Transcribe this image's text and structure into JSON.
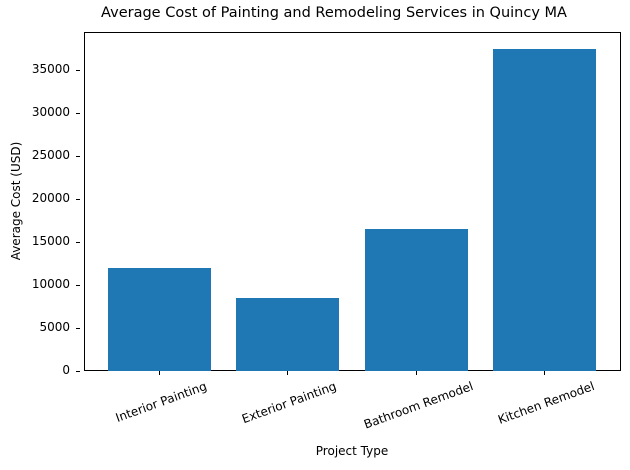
{
  "chart_data": {
    "type": "bar",
    "title": "Average Cost of Painting and Remodeling Services in Quincy MA",
    "xlabel": "Project Type",
    "ylabel": "Average Cost (USD)",
    "categories": [
      "Interior Painting",
      "Exterior Painting",
      "Bathroom Remodel",
      "Kitchen Remodel"
    ],
    "values": [
      12000,
      8500,
      16500,
      37500
    ],
    "ylim": [
      0,
      39375
    ],
    "yticks": [
      "0",
      "5000",
      "10000",
      "15000",
      "20000",
      "25000",
      "30000",
      "35000"
    ],
    "bar_color": "#1f77b4",
    "grid": false,
    "legend": null,
    "xtick_rotation": 20
  }
}
